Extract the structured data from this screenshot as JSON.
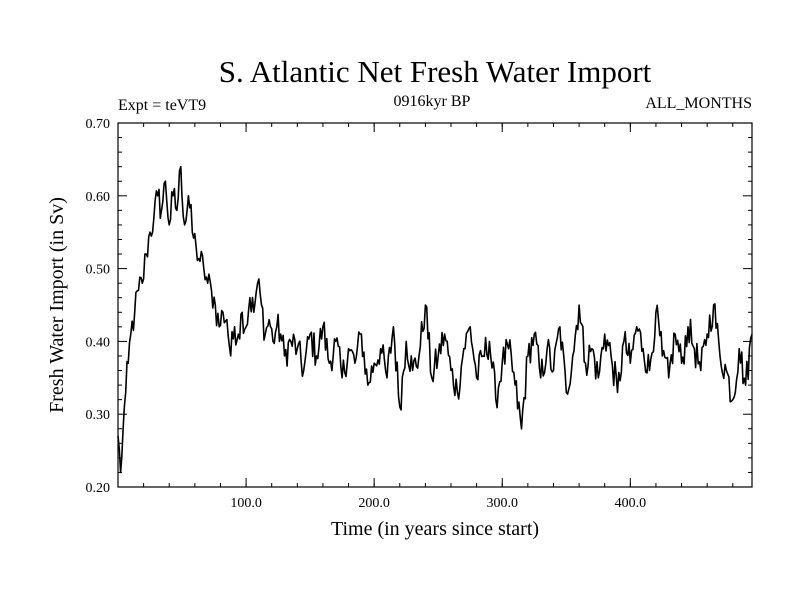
{
  "chart_data": {
    "type": "line",
    "title": "S. Atlantic Net Fresh Water Import",
    "expt_label": "Expt = teVT9",
    "period_label": "0916kyr BP",
    "months_label": "ALL_MONTHS",
    "xlabel": "Time (in years since start)",
    "ylabel": "Fresh Water Import (in Sv)",
    "xlim": [
      0,
      495
    ],
    "ylim": [
      0.2,
      0.7
    ],
    "xticks": [
      100,
      200,
      300,
      400
    ],
    "xtick_labels": [
      "100.0",
      "200.0",
      "300.0",
      "400.0"
    ],
    "yticks": [
      0.2,
      0.3,
      0.4,
      0.5,
      0.6,
      0.7
    ],
    "ytick_labels": [
      "0.20",
      "0.30",
      "0.40",
      "0.50",
      "0.60",
      "0.70"
    ],
    "grid": false,
    "series": [
      {
        "name": "Net Fresh Water Import",
        "x": [
          0,
          2,
          4,
          6,
          8,
          10,
          13,
          16,
          19,
          22,
          25,
          28,
          31,
          34,
          37,
          40,
          43,
          46,
          49,
          52,
          55,
          58,
          61,
          64,
          67,
          70,
          73,
          76,
          79,
          82,
          85,
          88,
          91,
          94,
          97,
          100,
          103,
          106,
          109,
          112,
          115,
          118,
          121,
          124,
          127,
          130,
          135,
          140,
          145,
          150,
          155,
          160,
          165,
          170,
          175,
          180,
          185,
          190,
          195,
          200,
          205,
          210,
          215,
          220,
          225,
          230,
          235,
          240,
          245,
          250,
          255,
          260,
          265,
          270,
          275,
          280,
          285,
          290,
          295,
          300,
          305,
          310,
          315,
          320,
          325,
          330,
          335,
          340,
          345,
          350,
          355,
          360,
          365,
          370,
          375,
          380,
          385,
          390,
          395,
          400,
          405,
          410,
          415,
          420,
          425,
          430,
          435,
          440,
          445,
          450,
          455,
          460,
          465,
          470,
          475,
          480,
          485,
          490,
          495
        ],
        "values": [
          0.27,
          0.22,
          0.28,
          0.33,
          0.37,
          0.41,
          0.44,
          0.47,
          0.48,
          0.52,
          0.55,
          0.57,
          0.6,
          0.58,
          0.62,
          0.56,
          0.6,
          0.58,
          0.64,
          0.56,
          0.6,
          0.55,
          0.53,
          0.51,
          0.5,
          0.48,
          0.47,
          0.45,
          0.42,
          0.44,
          0.43,
          0.38,
          0.42,
          0.41,
          0.44,
          0.42,
          0.46,
          0.44,
          0.48,
          0.45,
          0.41,
          0.43,
          0.4,
          0.42,
          0.41,
          0.38,
          0.4,
          0.39,
          0.36,
          0.41,
          0.38,
          0.42,
          0.37,
          0.4,
          0.35,
          0.39,
          0.37,
          0.41,
          0.34,
          0.37,
          0.39,
          0.35,
          0.42,
          0.31,
          0.4,
          0.36,
          0.38,
          0.45,
          0.35,
          0.38,
          0.41,
          0.36,
          0.33,
          0.39,
          0.42,
          0.35,
          0.38,
          0.4,
          0.32,
          0.37,
          0.39,
          0.34,
          0.28,
          0.38,
          0.41,
          0.35,
          0.39,
          0.36,
          0.42,
          0.33,
          0.38,
          0.45,
          0.37,
          0.39,
          0.35,
          0.41,
          0.38,
          0.33,
          0.4,
          0.37,
          0.42,
          0.39,
          0.36,
          0.44,
          0.38,
          0.35,
          0.41,
          0.37,
          0.42,
          0.39,
          0.36,
          0.41,
          0.45,
          0.38,
          0.36,
          0.32,
          0.39,
          0.34,
          0.41
        ]
      }
    ]
  }
}
